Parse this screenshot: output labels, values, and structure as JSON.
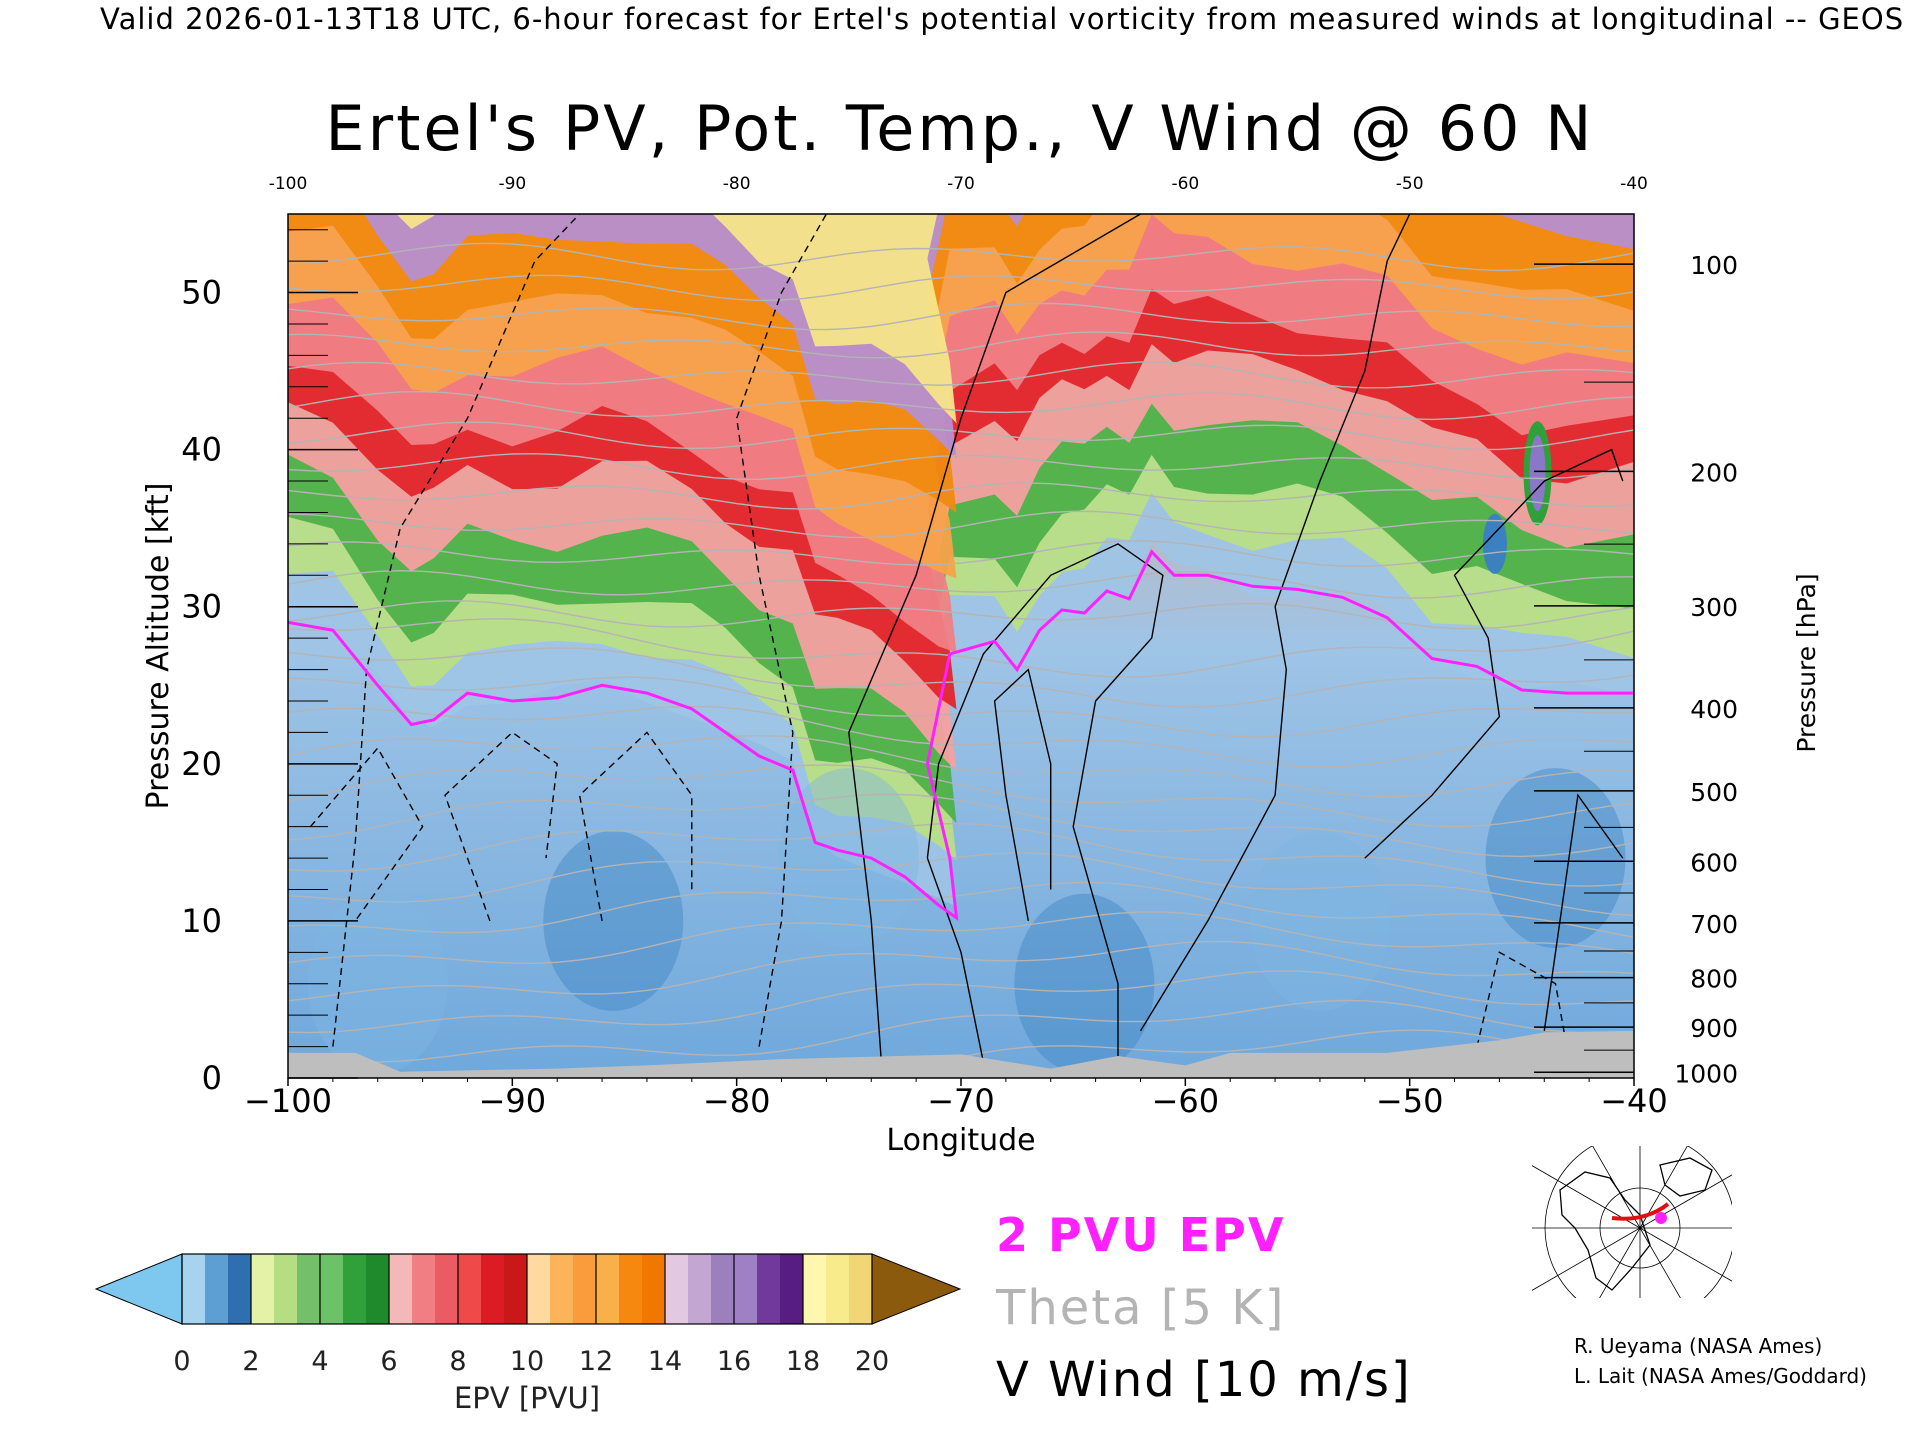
{
  "header": {
    "text": "Valid 2026-01-13T18 UTC, 6-hour forecast for Ertel's potential vorticity from measured winds at longitudinal -- GEOS"
  },
  "title": "Ertel's PV, Pot. Temp., V Wind @ 60 N",
  "chart_data": {
    "type": "heatmap",
    "title": "Ertel's PV, Pot. Temp., V Wind @ 60 N",
    "xlabel": "Longitude",
    "ylabel": "Pressure Altitude [kft]",
    "y2label": "Pressure [hPa]",
    "xlim": [
      -100,
      -40
    ],
    "ylim": [
      0,
      55
    ],
    "x_ticks": [
      -100,
      -90,
      -80,
      -70,
      -60,
      -50,
      -40
    ],
    "x_tick_labels": [
      "−100",
      "−90",
      "−80",
      "−70",
      "−60",
      "−50",
      "−40"
    ],
    "top_tick_labels": [
      "-100",
      "-90",
      "-80",
      "-70",
      "-60",
      "-50",
      "-40"
    ],
    "y_ticks": [
      0,
      10,
      20,
      30,
      40,
      50
    ],
    "pressure_ticks": [
      {
        "p": 100,
        "label": "100"
      },
      {
        "p": 200,
        "label": "200"
      },
      {
        "p": 300,
        "label": "300"
      },
      {
        "p": 400,
        "label": "400"
      },
      {
        "p": 500,
        "label": "500"
      },
      {
        "p": 600,
        "label": "600"
      },
      {
        "p": 700,
        "label": "700"
      },
      {
        "p": 800,
        "label": "800"
      },
      {
        "p": 900,
        "label": "900"
      },
      {
        "p": 1000,
        "label": "1000"
      }
    ],
    "pv_2pvu_line_kft": [
      [
        -100,
        29
      ],
      [
        -98,
        28.5
      ],
      [
        -96,
        25
      ],
      [
        -94.5,
        22.5
      ],
      [
        -93.5,
        22.8
      ],
      [
        -92,
        24.5
      ],
      [
        -90,
        24
      ],
      [
        -88,
        24.2
      ],
      [
        -86,
        25
      ],
      [
        -84,
        24.5
      ],
      [
        -82,
        23.5
      ],
      [
        -80.5,
        22
      ],
      [
        -79,
        20.5
      ],
      [
        -77.5,
        19.6
      ],
      [
        -76.5,
        15
      ],
      [
        -75.5,
        14.5
      ],
      [
        -74,
        14
      ],
      [
        -72.5,
        12.8
      ],
      [
        -71,
        11
      ],
      [
        -70.2,
        10.2
      ],
      [
        -70.5,
        14
      ],
      [
        -71.5,
        20
      ],
      [
        -70.5,
        27
      ],
      [
        -68.5,
        27.8
      ],
      [
        -67.5,
        26
      ],
      [
        -66.5,
        28.5
      ],
      [
        -65.5,
        29.8
      ],
      [
        -64.5,
        29.6
      ],
      [
        -63.5,
        31
      ],
      [
        -62.5,
        30.5
      ],
      [
        -61.5,
        33.5
      ],
      [
        -60.5,
        32
      ],
      [
        -59,
        32
      ],
      [
        -57,
        31.3
      ],
      [
        -55,
        31.1
      ],
      [
        -53,
        30.6
      ],
      [
        -51,
        29.3
      ],
      [
        -49,
        26.7
      ],
      [
        -47,
        26.2
      ],
      [
        -45,
        24.7
      ],
      [
        -43,
        24.5
      ],
      [
        -40,
        24.5
      ]
    ],
    "theta_contour_interval_K": 5,
    "v_wind_contour_interval_ms": 10,
    "colorbar": {
      "label": "EPV [PVU]",
      "min": 0,
      "max": 20,
      "step": 2,
      "tick_labels": [
        "0",
        "2",
        "4",
        "6",
        "8",
        "10",
        "12",
        "14",
        "16",
        "18",
        "20"
      ],
      "low_extend_color": "#7ec8f0",
      "high_extend_color": "#8b5a0c",
      "bands": [
        [
          "#a6d3ee",
          "#5e9fd3",
          "#2d6fb0"
        ],
        [
          "#e3f2a6",
          "#b4de81",
          "#74c06a"
        ],
        [
          "#6cc267",
          "#2fa03a",
          "#1f8a2c"
        ],
        [
          "#f5b8b8",
          "#f07e83",
          "#ea5b63"
        ],
        [
          "#ef4a4a",
          "#dc1c24",
          "#c81818"
        ],
        [
          "#ffd9a0",
          "#fbb45a",
          "#fa9c3c"
        ],
        [
          "#fab048",
          "#f68810",
          "#f07800"
        ],
        [
          "#e3c9e0",
          "#c3a6d2",
          "#9e7fbe"
        ],
        [
          "#a080c4",
          "#72399c",
          "#571d80"
        ],
        [
          "#fff6b0",
          "#f8eb8c",
          "#f1d675"
        ]
      ]
    }
  },
  "legend": {
    "pv_line_label": "2 PVU EPV",
    "theta_label": "Theta [5 K]",
    "vwind_label": "V Wind [10 m/s]",
    "pv_line_color": "#ff20ff",
    "theta_color": "#b4b4b4",
    "vwind_color": "#000000"
  },
  "inset_map": {
    "section_color": "#e01010",
    "marker_color": "#ff20ff"
  },
  "credits": [
    "R. Ueyama (NASA Ames)",
    "L. Lait (NASA Ames/Goddard)"
  ]
}
